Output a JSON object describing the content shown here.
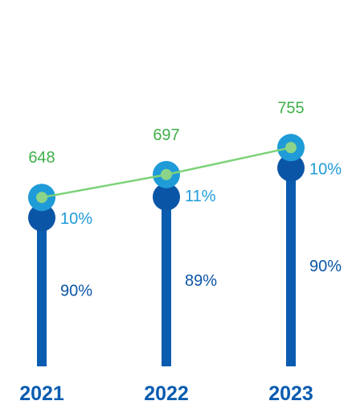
{
  "chart_data": {
    "type": "bar",
    "categories": [
      "2021",
      "2022",
      "2023"
    ],
    "totals": [
      648,
      697,
      755
    ],
    "series": [
      {
        "values": [
          90,
          89,
          90
        ]
      },
      {
        "values": [
          10,
          11,
          10
        ]
      }
    ],
    "value_suffix": "%",
    "colors": {
      "primary_bar": "#0a5cb0",
      "primary_marker": "#0b55a6",
      "secondary_bar": "#1f9bd8",
      "secondary_marker_ring": "#1f9bd8",
      "total_line": "#7ed37a",
      "total_marker": "#8bd48a",
      "total_label": "#3fb04a",
      "year_label": "#0a5cb0",
      "pct_primary_label": "#0b55a6",
      "pct_secondary_label": "#1f9bd8"
    }
  }
}
